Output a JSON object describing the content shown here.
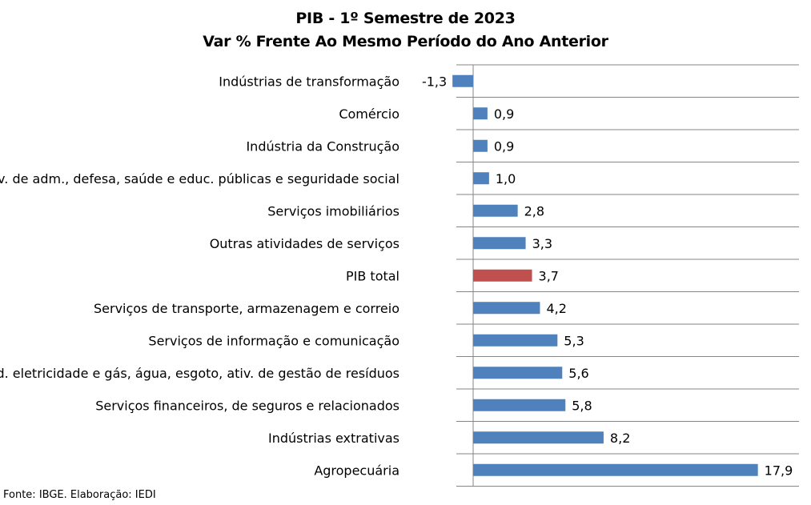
{
  "chart_data": {
    "type": "bar",
    "orientation": "horizontal",
    "title": "PIB - 1º Semestre de 2023",
    "subtitle": "Var % Frente Ao Mesmo Período do Ano Anterior",
    "categories": [
      "Indústrias de transformação",
      "Comércio",
      "Indústria da Construção",
      "Serv. de adm., defesa, saúde e educ. públicas e seguridade social",
      "Serviços imobiliários",
      "Outras atividades de serviços",
      "PIB total",
      "Serviços de transporte, armazenagem e correio",
      "Serviços de informação e comunicação",
      "Ind. eletricidade e gás, água, esgoto, ativ. de gestão de resíduos",
      "Serviços financeiros, de seguros e relacionados",
      "Indústrias extrativas",
      "Agropecuária"
    ],
    "values": [
      -1.3,
      0.9,
      0.9,
      1.0,
      2.8,
      3.3,
      3.7,
      4.2,
      5.3,
      5.6,
      5.8,
      8.2,
      17.9
    ],
    "value_labels": [
      "-1,3",
      "0,9",
      "0,9",
      "1,0",
      "2,8",
      "3,3",
      "3,7",
      "4,2",
      "5,3",
      "5,6",
      "5,8",
      "8,2",
      "17,9"
    ],
    "highlight_category": "PIB total",
    "xlim": [
      -1.3,
      20.4
    ],
    "grid": true,
    "legend": "none",
    "colors": {
      "bar": "#4F81BD",
      "highlight": "#C0504D",
      "grid": "#868686"
    }
  },
  "footer": {
    "source": "Fonte: IBGE. Elaboração: IEDI"
  }
}
